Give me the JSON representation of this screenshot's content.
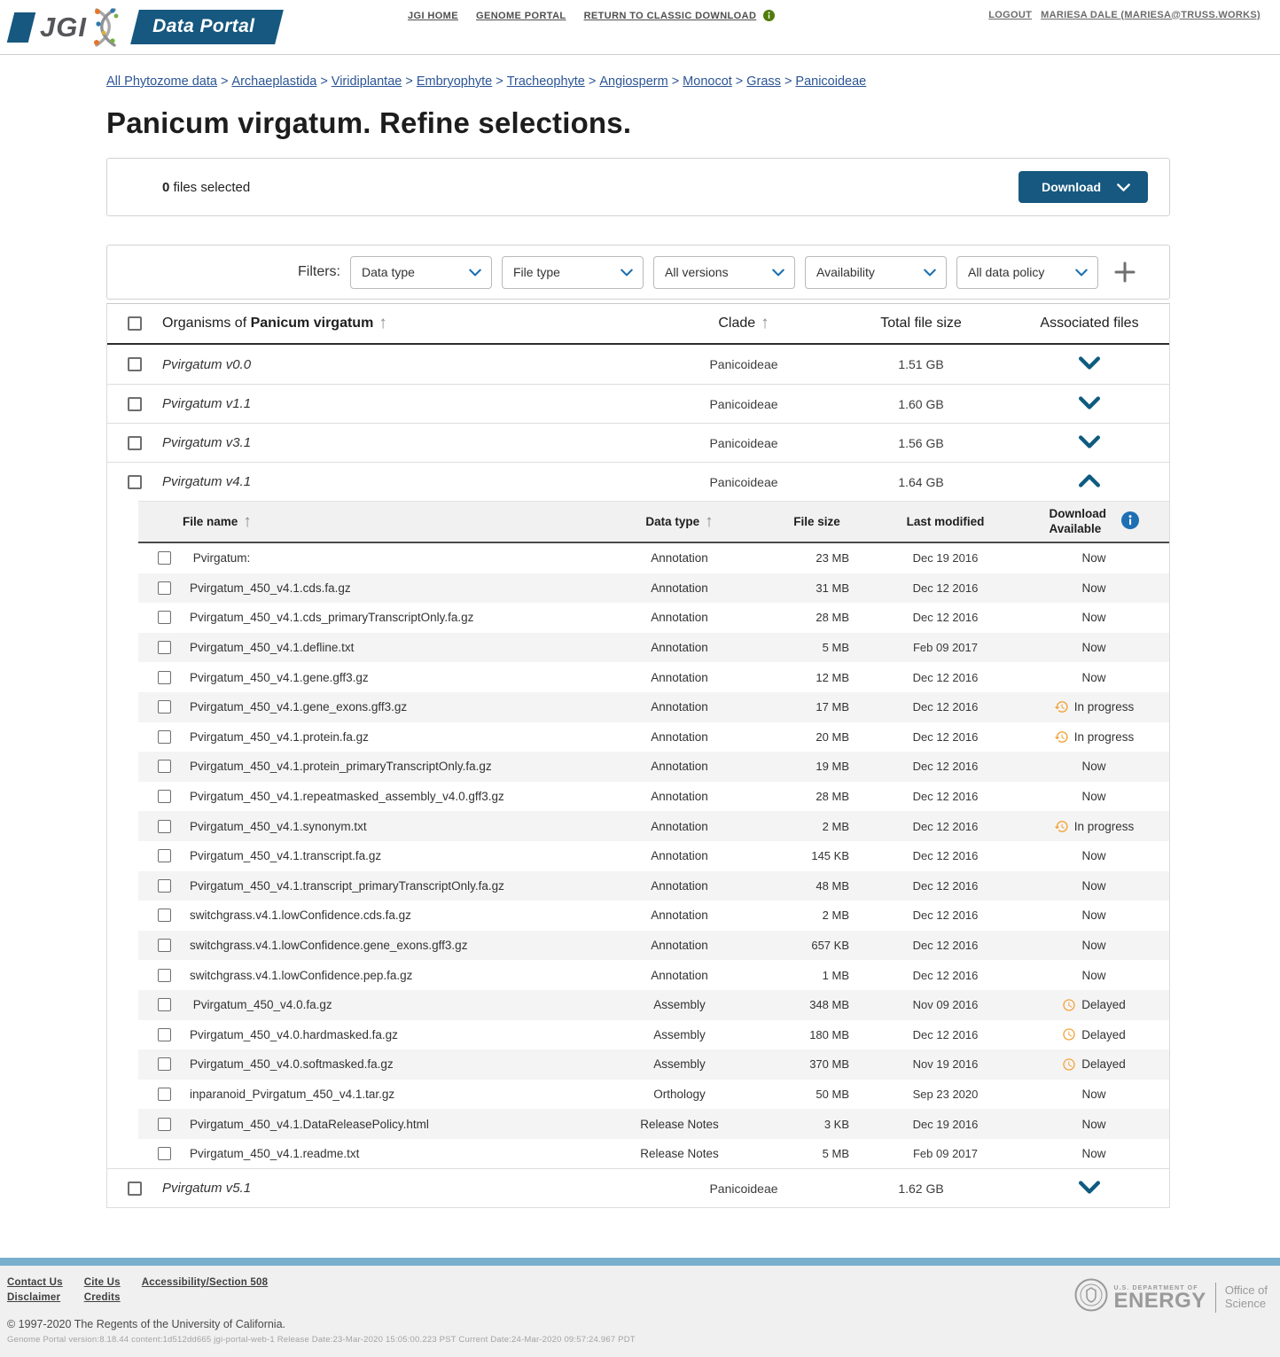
{
  "colors": {
    "brand_blue": "#16587f",
    "filter_chevron_blue": "#1b6fb1",
    "row_chevron_blue": "#0f5b80",
    "link_blue": "#2b5596",
    "status_orange": "#f2a33a",
    "info_blue": "#1e6fb4",
    "info_green": "#507d08",
    "footer_bar_blue": "#79aecd"
  },
  "header": {
    "brand_jgi": "JGI",
    "brand_product": "Data Portal",
    "nav": [
      {
        "label": "JGI HOME",
        "has_info_icon": false
      },
      {
        "label": "GENOME PORTAL",
        "has_info_icon": false
      },
      {
        "label": "RETURN TO CLASSIC DOWNLOAD",
        "has_info_icon": true
      }
    ],
    "logout_label": "LOGOUT",
    "user_label": "MARIESA DALE (MARIESA@TRUSS.WORKS)"
  },
  "breadcrumb": {
    "items": [
      "All Phytozome data",
      "Archaeplastida",
      "Viridiplantae",
      "Embryophyte",
      "Tracheophyte",
      "Angiosperm",
      "Monocot",
      "Grass",
      "Panicoideae"
    ],
    "separator": ">"
  },
  "page_title": "Panicum virgatum. Refine selections.",
  "selection_bar": {
    "count": "0",
    "count_suffix": " files selected",
    "download_label": "Download"
  },
  "filters": {
    "label": "Filters:",
    "dropdowns": [
      "Data type",
      "File type",
      "All versions",
      "Availability",
      "All data policy"
    ]
  },
  "organisms": {
    "header": {
      "title_prefix": "Organisms of ",
      "title_bold": "Panicum virgatum",
      "clade": "Clade",
      "total_file_size": "Total file size",
      "associated_files": "Associated files"
    },
    "rows": [
      {
        "name": "Pvirgatum v0.0",
        "clade": "Panicoideae",
        "size": "1.51 GB",
        "expanded": false
      },
      {
        "name": "Pvirgatum v1.1",
        "clade": "Panicoideae",
        "size": "1.60 GB",
        "expanded": false
      },
      {
        "name": "Pvirgatum v3.1",
        "clade": "Panicoideae",
        "size": "1.56 GB",
        "expanded": false
      },
      {
        "name": "Pvirgatum v4.1",
        "clade": "Panicoideae",
        "size": "1.64 GB",
        "expanded": true
      },
      {
        "name": "Pvirgatum v5.1",
        "clade": "Panicoideae",
        "size": "1.62 GB",
        "expanded": false
      }
    ]
  },
  "file_table": {
    "header": {
      "file_name": "File name",
      "data_type": "Data type",
      "file_size": "File size",
      "last_modified": "Last modified",
      "download_available": "Download Available"
    },
    "rows": [
      {
        "name": " Pvirgatum:",
        "type": "Annotation",
        "size": "23 MB",
        "modified": "Dec 19 2016",
        "status": "Now"
      },
      {
        "name": "Pvirgatum_450_v4.1.cds.fa.gz",
        "type": "Annotation",
        "size": "31 MB",
        "modified": "Dec 12 2016",
        "status": "Now"
      },
      {
        "name": "Pvirgatum_450_v4.1.cds_primaryTranscriptOnly.fa.gz",
        "type": "Annotation",
        "size": "28 MB",
        "modified": "Dec 12 2016",
        "status": "Now"
      },
      {
        "name": "Pvirgatum_450_v4.1.defline.txt",
        "type": "Annotation",
        "size": "5 MB",
        "modified": "Feb 09 2017",
        "status": "Now"
      },
      {
        "name": "Pvirgatum_450_v4.1.gene.gff3.gz",
        "type": "Annotation",
        "size": "12 MB",
        "modified": "Dec 12 2016",
        "status": "Now"
      },
      {
        "name": "Pvirgatum_450_v4.1.gene_exons.gff3.gz",
        "type": "Annotation",
        "size": "17 MB",
        "modified": "Dec 12 2016",
        "status": "In progress"
      },
      {
        "name": "Pvirgatum_450_v4.1.protein.fa.gz",
        "type": "Annotation",
        "size": "20 MB",
        "modified": "Dec 12 2016",
        "status": "In progress"
      },
      {
        "name": "Pvirgatum_450_v4.1.protein_primaryTranscriptOnly.fa.gz",
        "type": "Annotation",
        "size": "19 MB",
        "modified": "Dec 12 2016",
        "status": "Now"
      },
      {
        "name": "Pvirgatum_450_v4.1.repeatmasked_assembly_v4.0.gff3.gz",
        "type": "Annotation",
        "size": "28 MB",
        "modified": "Dec 12 2016",
        "status": "Now"
      },
      {
        "name": "Pvirgatum_450_v4.1.synonym.txt",
        "type": "Annotation",
        "size": "2 MB",
        "modified": "Dec 12 2016",
        "status": "In progress"
      },
      {
        "name": "Pvirgatum_450_v4.1.transcript.fa.gz",
        "type": "Annotation",
        "size": "145 KB",
        "modified": "Dec 12 2016",
        "status": "Now"
      },
      {
        "name": "Pvirgatum_450_v4.1.transcript_primaryTranscriptOnly.fa.gz",
        "type": "Annotation",
        "size": "48 MB",
        "modified": "Dec 12 2016",
        "status": "Now"
      },
      {
        "name": "switchgrass.v4.1.lowConfidence.cds.fa.gz",
        "type": "Annotation",
        "size": "2 MB",
        "modified": "Dec 12 2016",
        "status": "Now"
      },
      {
        "name": "switchgrass.v4.1.lowConfidence.gene_exons.gff3.gz",
        "type": "Annotation",
        "size": "657 KB",
        "modified": "Dec 12 2016",
        "status": "Now"
      },
      {
        "name": "switchgrass.v4.1.lowConfidence.pep.fa.gz",
        "type": "Annotation",
        "size": "1 MB",
        "modified": "Dec 12 2016",
        "status": "Now"
      },
      {
        "name": " Pvirgatum_450_v4.0.fa.gz",
        "type": "Assembly",
        "size": "348 MB",
        "modified": "Nov 09 2016",
        "status": "Delayed"
      },
      {
        "name": "Pvirgatum_450_v4.0.hardmasked.fa.gz",
        "type": "Assembly",
        "size": "180 MB",
        "modified": "Dec 12 2016",
        "status": "Delayed"
      },
      {
        "name": "Pvirgatum_450_v4.0.softmasked.fa.gz",
        "type": "Assembly",
        "size": "370 MB",
        "modified": "Nov 19 2016",
        "status": "Delayed"
      },
      {
        "name": "inparanoid_Pvirgatum_450_v4.1.tar.gz",
        "type": "Orthology",
        "size": "50 MB",
        "modified": "Sep 23 2020",
        "status": "Now"
      },
      {
        "name": "Pvirgatum_450_v4.1.DataReleasePolicy.html",
        "type": "Release Notes",
        "size": "3 KB",
        "modified": "Dec 19 2016",
        "status": "Now"
      },
      {
        "name": "Pvirgatum_450_v4.1.readme.txt",
        "type": "Release Notes",
        "size": "5 MB",
        "modified": "Feb 09 2017",
        "status": "Now"
      }
    ],
    "status_now": "Now",
    "status_in_progress": "In progress",
    "status_delayed": "Delayed"
  },
  "footer": {
    "links": [
      "Contact Us",
      "Cite Us",
      "Accessibility/Section 508",
      "Disclaimer",
      "Credits"
    ],
    "copyright": "© 1997-2020 The Regents of the University of California.",
    "version": "Genome Portal version:8.18.44 content:1d512dd665 jgi-portal-web-1 Release Date:23-Mar-2020 15:05:00.223 PST Current Date:24-Mar-2020 09:57:24.967 PDT",
    "doe_dept": "U.S. DEPARTMENT OF",
    "doe_energy": "ENERGY",
    "doe_office_line1": "Office of",
    "doe_office_line2": "Science"
  }
}
